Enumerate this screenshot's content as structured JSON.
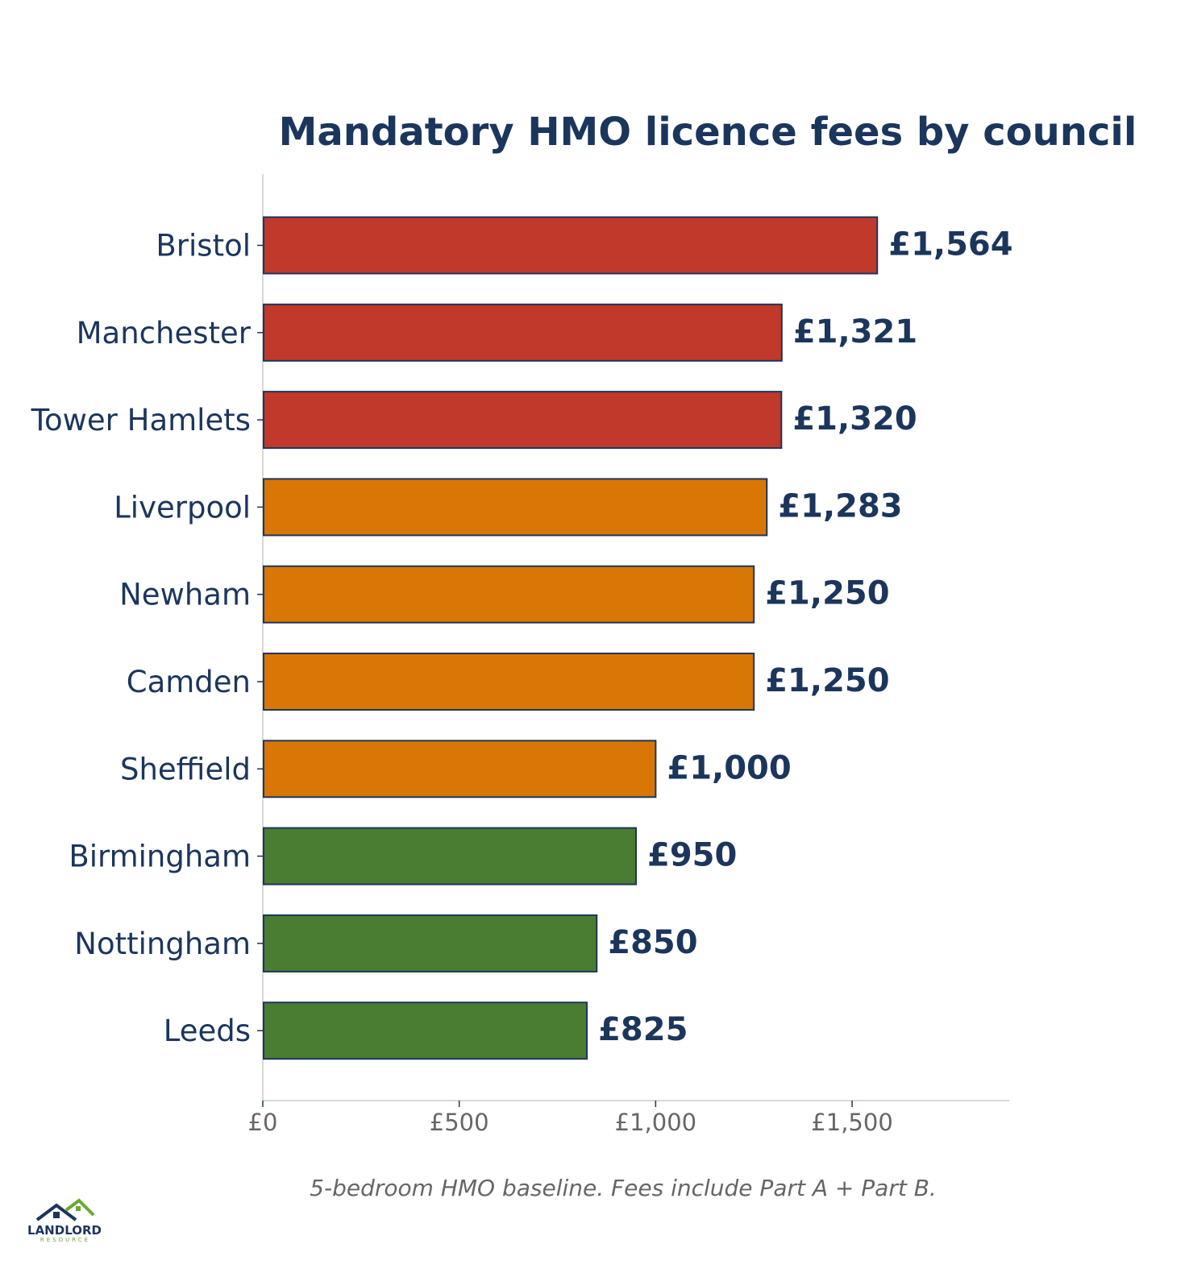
{
  "chart_data": {
    "type": "bar",
    "orientation": "horizontal",
    "title": "Mandatory HMO licence fees by council",
    "categories": [
      "Bristol",
      "Manchester",
      "Tower Hamlets",
      "Liverpool",
      "Newham",
      "Camden",
      "Sheffield",
      "Birmingham",
      "Nottingham",
      "Leeds"
    ],
    "values": [
      1564,
      1321,
      1320,
      1283,
      1250,
      1250,
      1000,
      950,
      850,
      825
    ],
    "value_labels": [
      "£1,564",
      "£1,321",
      "£1,320",
      "£1,283",
      "£1,250",
      "£1,250",
      "£1,000",
      "£950",
      "£850",
      "£825"
    ],
    "bar_colors": [
      "#c0392b",
      "#c0392b",
      "#c0392b",
      "#d97706",
      "#d97706",
      "#d97706",
      "#d97706",
      "#4a7c32",
      "#4a7c32",
      "#4a7c32"
    ],
    "xlim": [
      0,
      1900
    ],
    "xticks": [
      0,
      500,
      1000,
      1500
    ],
    "xtick_labels": [
      "£0",
      "£500",
      "£1,000",
      "£1,500"
    ],
    "xlabel": "",
    "ylabel": "",
    "grid": false,
    "legend": "none"
  },
  "footnote": "5-bedroom HMO baseline. Fees include Part A + Part B.",
  "logo": {
    "name": "LANDLORD",
    "sub": "RESOURCE"
  },
  "colors": {
    "title": "#1b365d",
    "text": "#1b365d",
    "tick_text": "#666666",
    "axis": "#cccccc",
    "bar_edge": "#1b365d",
    "logo_green": "#6aa832"
  }
}
